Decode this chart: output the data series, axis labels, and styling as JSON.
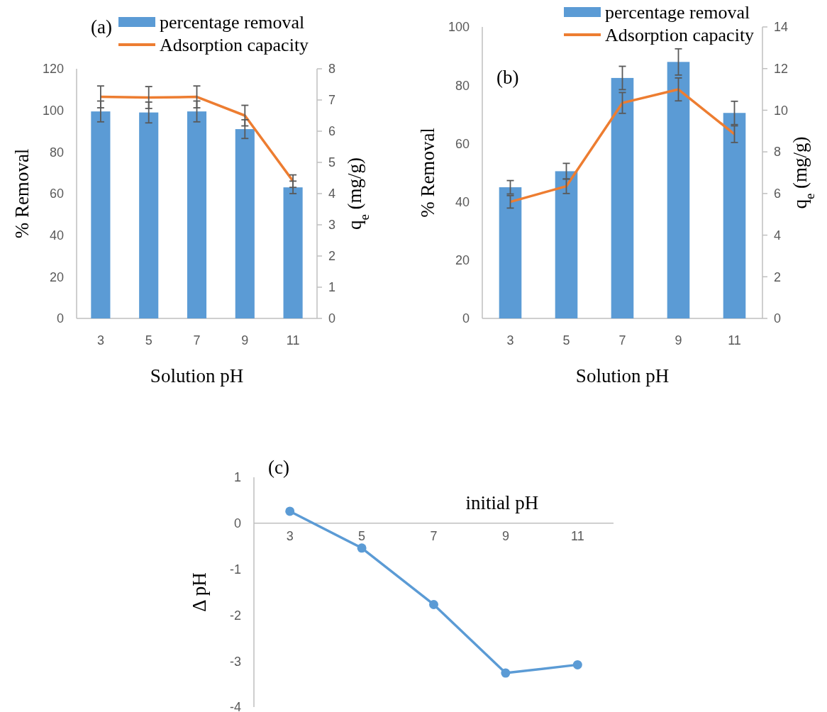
{
  "chart_data": [
    {
      "type": "bar",
      "annotations": [
        "(a)"
      ],
      "xlabel": "Solution pH",
      "ylabel": "% Removal",
      "y2label": "q$_{e}$ (mg/g)",
      "categories": [
        "3",
        "5",
        "7",
        "9",
        "11"
      ],
      "ylim": [
        0,
        120
      ],
      "yticks": [
        0,
        20,
        40,
        60,
        80,
        100,
        120
      ],
      "y2lim": [
        0,
        8
      ],
      "y2ticks": [
        0,
        1,
        2,
        3,
        4,
        5,
        6,
        7,
        8
      ],
      "legend": "top",
      "series": [
        {
          "name": "percentage removal",
          "type": "bar",
          "color": "#5b9bd5",
          "values": [
            99.5,
            99,
            99.5,
            91,
            63
          ],
          "errors": [
            5,
            5,
            5,
            4.5,
            3
          ]
        },
        {
          "name": "Adsorption capacity",
          "type": "line",
          "axis": "y2",
          "color": "#ed7d31",
          "values": [
            7.1,
            7.08,
            7.1,
            6.5,
            4.4
          ],
          "errors": [
            0.35,
            0.35,
            0.35,
            0.33,
            0.2
          ]
        }
      ]
    },
    {
      "type": "bar",
      "annotations": [
        "(b)"
      ],
      "xlabel": "Solution pH",
      "ylabel": "% Removal",
      "y2label": "q$_{e}$ (mg/g)",
      "categories": [
        "3",
        "5",
        "7",
        "9",
        "11"
      ],
      "ylim": [
        0,
        100
      ],
      "yticks": [
        0,
        20,
        40,
        60,
        80,
        100
      ],
      "y2lim": [
        0,
        14
      ],
      "y2ticks": [
        0,
        2,
        4,
        6,
        8,
        10,
        12,
        14
      ],
      "legend": "top",
      "series": [
        {
          "name": "percentage removal",
          "type": "bar",
          "color": "#5b9bd5",
          "values": [
            45,
            50.5,
            82.5,
            88,
            70.5
          ],
          "errors": [
            2.3,
            2.7,
            4,
            4.5,
            4
          ]
        },
        {
          "name": "Adsorption capacity",
          "type": "line",
          "axis": "y2",
          "color": "#ed7d31",
          "values": [
            5.6,
            6.35,
            10.35,
            11,
            8.85
          ],
          "errors": [
            0.3,
            0.35,
            0.5,
            0.55,
            0.4
          ]
        }
      ]
    },
    {
      "type": "line",
      "annotations": [
        "(c)"
      ],
      "xlabel": "initial pH",
      "ylabel": "Δ pH",
      "categories": [
        "3",
        "5",
        "7",
        "9",
        "11"
      ],
      "ylim": [
        -4,
        1
      ],
      "yticks": [
        -4,
        -3,
        -2,
        -1,
        0,
        1
      ],
      "marker": "circle",
      "series": [
        {
          "color": "#5b9bd5",
          "values": [
            0.26,
            -0.54,
            -1.77,
            -3.26,
            -3.08
          ]
        }
      ]
    }
  ]
}
